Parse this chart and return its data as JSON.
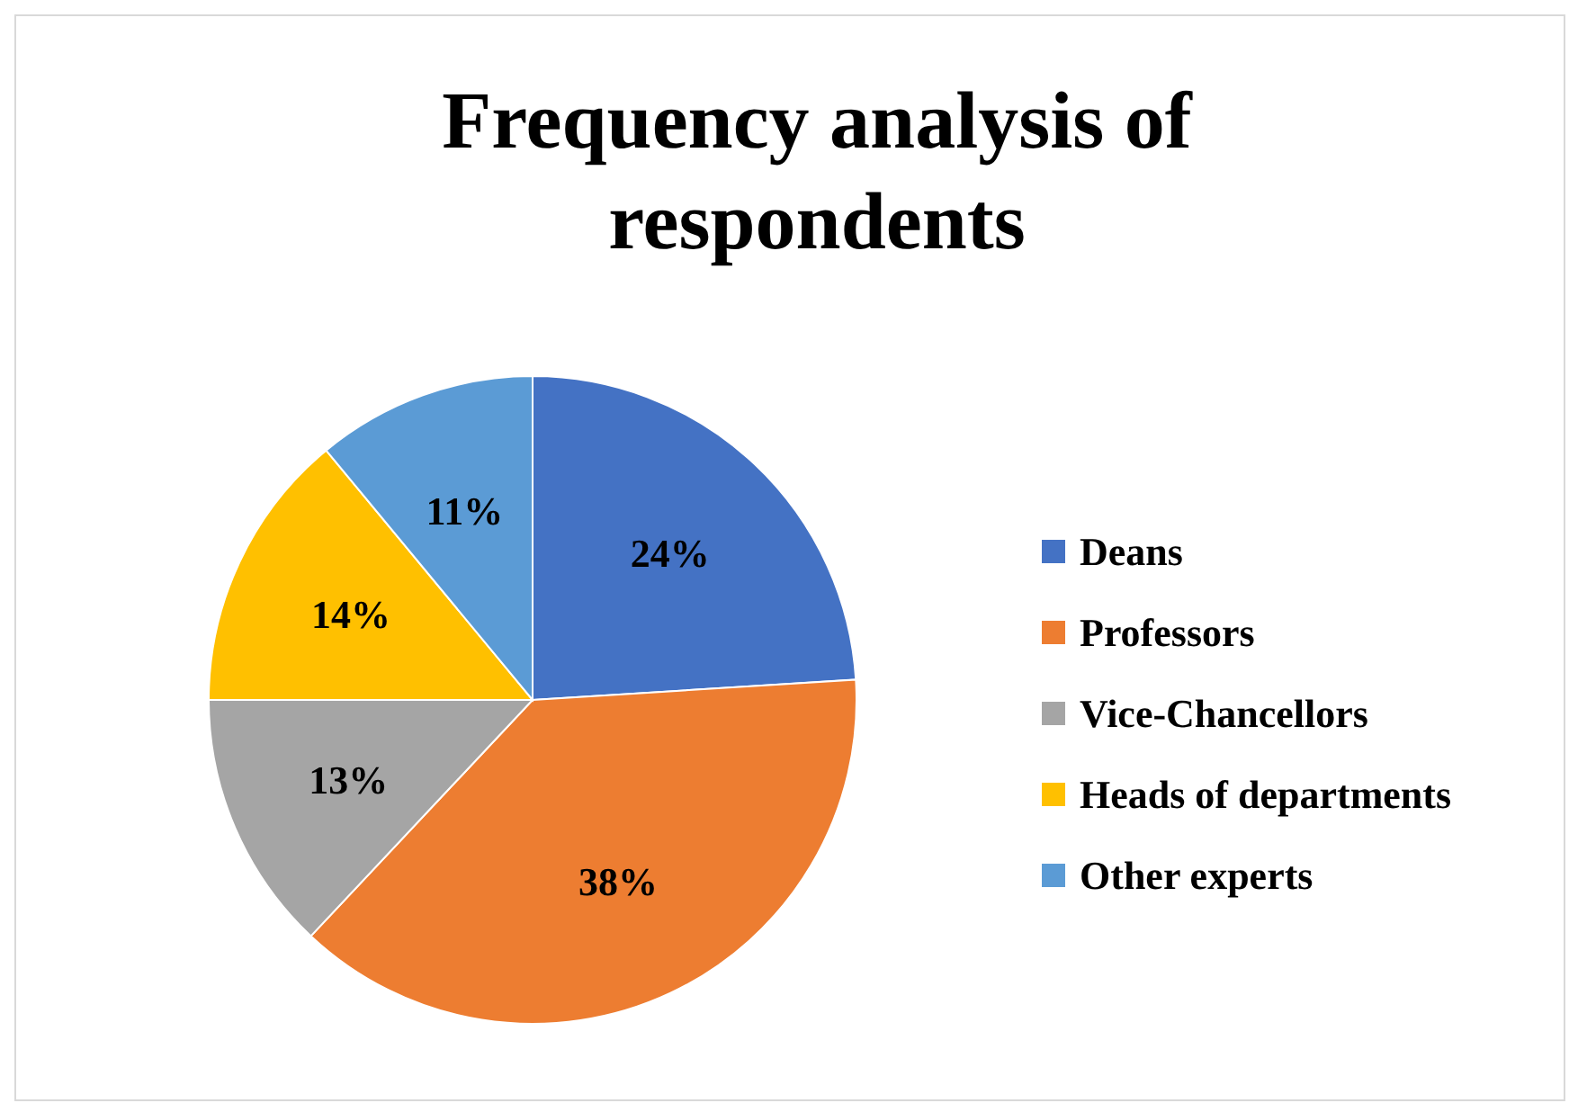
{
  "chart_data": {
    "type": "pie",
    "title": "Frequency analysis of respondents",
    "categories": [
      "Deans",
      "Professors",
      "Vice-Chancellors",
      "Heads of departments",
      "Other experts"
    ],
    "values": [
      24,
      38,
      13,
      14,
      11
    ],
    "colors": [
      "#4472c4",
      "#ed7d31",
      "#a5a5a5",
      "#ffc000",
      "#5b9bd5"
    ],
    "value_labels": [
      "24%",
      "38%",
      "13%",
      "14%",
      "11%"
    ],
    "legend": "right"
  }
}
